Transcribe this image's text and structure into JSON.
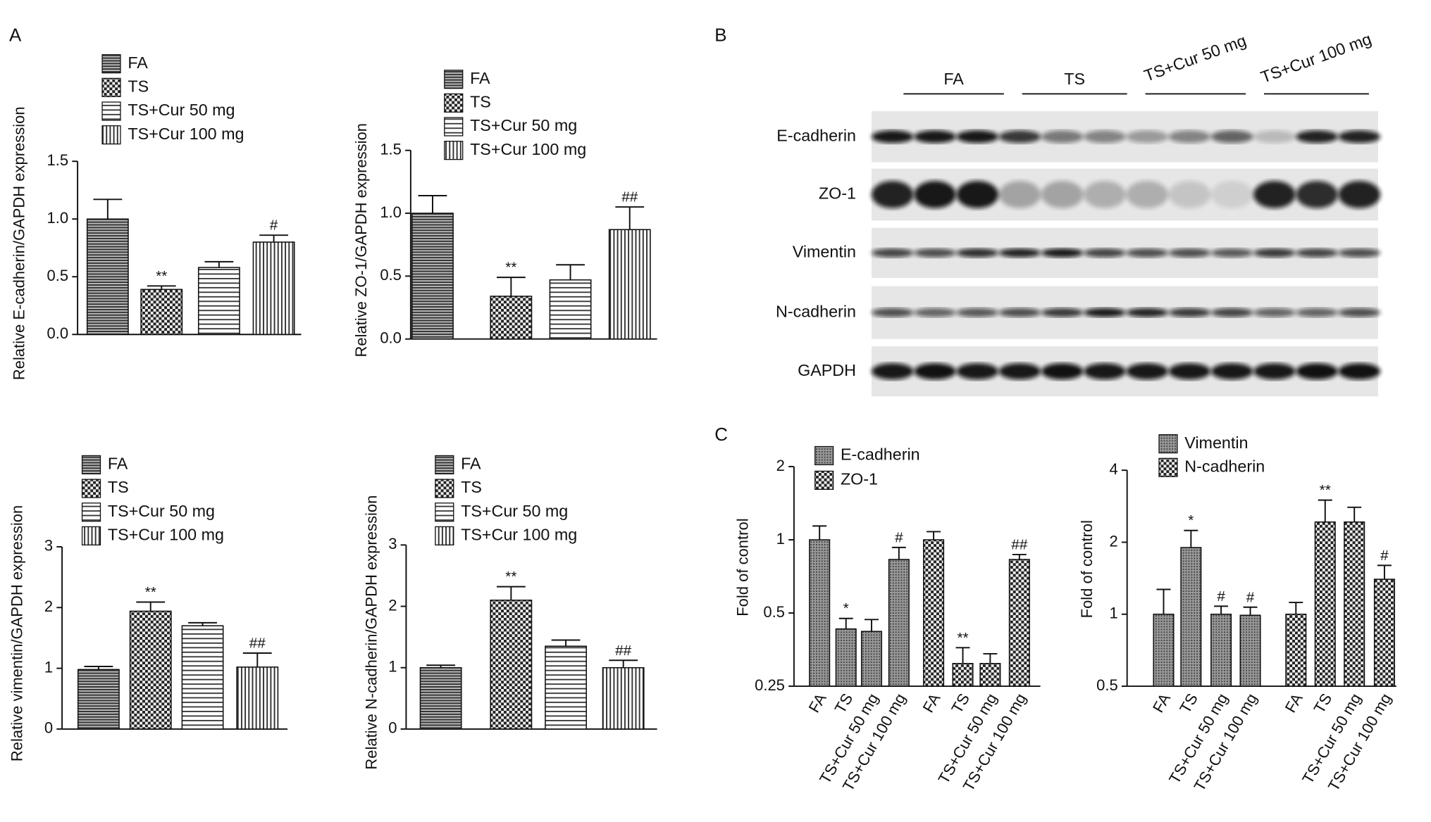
{
  "panel_labels": [
    "A",
    "B",
    "C"
  ],
  "blot": {
    "groups": [
      "FA",
      "TS",
      "TS+Cur 50 mg",
      "TS+Cur 100 mg"
    ],
    "proteins": [
      "E-cadherin",
      "ZO-1",
      "Vimentin",
      "N-cadherin",
      "GAPDH"
    ]
  },
  "chart_data": [
    {
      "type": "bar",
      "ylabel": "Relative E-cadherin/GAPDH expression",
      "ylim": [
        0,
        1.5
      ],
      "yticks": [
        {
          "value": 0,
          "label": "0.0"
        },
        0.5,
        {
          "value": 1,
          "label": "1.0"
        },
        1.5
      ],
      "series": [
        {
          "name": "FA",
          "pattern": "hlines",
          "values": [
            1.0
          ],
          "errors": [
            0.17
          ]
        },
        {
          "name": "TS",
          "pattern": "checker",
          "values": [
            0.39
          ],
          "errors": [
            0.03
          ],
          "annotations": [
            "**"
          ]
        },
        {
          "name": "TS+Cur 50 mg",
          "pattern": "hlines-light",
          "values": [
            0.58
          ],
          "errors": [
            0.05
          ]
        },
        {
          "name": "TS+Cur 100 mg",
          "pattern": "vlines",
          "values": [
            0.8
          ],
          "errors": [
            0.06
          ],
          "annotations": [
            "#"
          ]
        }
      ]
    },
    {
      "type": "bar",
      "ylabel": "Relative ZO-1/GAPDH expression",
      "ylim": [
        0,
        1.5
      ],
      "yticks": [
        {
          "value": 0,
          "label": "0.0"
        },
        0.5,
        {
          "value": 1,
          "label": "1.0"
        },
        1.5
      ],
      "series": [
        {
          "name": "FA",
          "pattern": "hlines",
          "values": [
            1.0
          ],
          "errors": [
            0.14
          ]
        },
        {
          "name": "TS",
          "pattern": "checker",
          "values": [
            0.34
          ],
          "errors": [
            0.15
          ],
          "annotations": [
            "**"
          ]
        },
        {
          "name": "TS+Cur 50 mg",
          "pattern": "hlines-light",
          "values": [
            0.47
          ],
          "errors": [
            0.12
          ]
        },
        {
          "name": "TS+Cur 100 mg",
          "pattern": "vlines",
          "values": [
            0.87
          ],
          "errors": [
            0.18
          ],
          "annotations": [
            "##"
          ]
        }
      ]
    },
    {
      "type": "bar",
      "ylabel": "Relative vimentin/GAPDH expression",
      "ylim": [
        0,
        3
      ],
      "yticks": [
        0,
        1,
        2,
        3
      ],
      "series": [
        {
          "name": "FA",
          "pattern": "hlines",
          "values": [
            0.98
          ],
          "errors": [
            0.05
          ]
        },
        {
          "name": "TS",
          "pattern": "checker",
          "values": [
            1.94
          ],
          "errors": [
            0.15
          ],
          "annotations": [
            "**"
          ]
        },
        {
          "name": "TS+Cur 50 mg",
          "pattern": "hlines-light",
          "values": [
            1.7
          ],
          "errors": [
            0.05
          ]
        },
        {
          "name": "TS+Cur 100 mg",
          "pattern": "vlines",
          "values": [
            1.02
          ],
          "errors": [
            0.23
          ],
          "annotations": [
            "##"
          ]
        }
      ]
    },
    {
      "type": "bar",
      "ylabel": "Relative N-cadherin/GAPDH expression",
      "ylim": [
        0,
        3
      ],
      "yticks": [
        0,
        1,
        2,
        3
      ],
      "series": [
        {
          "name": "FA",
          "pattern": "hlines",
          "values": [
            1.0
          ],
          "errors": [
            0.04
          ]
        },
        {
          "name": "TS",
          "pattern": "checker",
          "values": [
            2.1
          ],
          "errors": [
            0.22
          ],
          "annotations": [
            "**"
          ]
        },
        {
          "name": "TS+Cur 50 mg",
          "pattern": "hlines-light",
          "values": [
            1.35
          ],
          "errors": [
            0.1
          ]
        },
        {
          "name": "TS+Cur 100 mg",
          "pattern": "vlines",
          "values": [
            1.0
          ],
          "errors": [
            0.12
          ],
          "annotations": [
            "##"
          ]
        }
      ]
    },
    {
      "type": "grouped_bar",
      "ylabel": "Fold of control",
      "log_scale": true,
      "ylim": [
        0.25,
        2
      ],
      "yticks": [
        0.25,
        0.5,
        1,
        2
      ],
      "categories": [
        "FA",
        "TS",
        "TS+Cur 50 mg",
        "TS+Cur 100 mg"
      ],
      "series": [
        {
          "name": "E-cadherin",
          "pattern": "dense",
          "values": [
            1.0,
            0.43,
            0.42,
            0.83
          ],
          "errors": [
            0.14,
            0.045,
            0.05,
            0.1
          ],
          "annotations": [
            null,
            "*",
            null,
            "#"
          ]
        },
        {
          "name": "ZO-1",
          "pattern": "checker",
          "values": [
            1.0,
            0.31,
            0.31,
            0.83
          ],
          "errors": [
            0.08,
            0.05,
            0.03,
            0.04
          ],
          "annotations": [
            null,
            "**",
            null,
            "##"
          ]
        }
      ]
    },
    {
      "type": "grouped_bar",
      "ylabel": "Fold of control",
      "log_scale": true,
      "ylim": [
        0.5,
        4
      ],
      "yticks": [
        0.5,
        1,
        2,
        4
      ],
      "categories": [
        "FA",
        "TS",
        "TS+Cur 50 mg",
        "TS+Cur 100 mg"
      ],
      "series": [
        {
          "name": "Vimentin",
          "pattern": "dense",
          "values": [
            1.0,
            1.9,
            1.0,
            0.99
          ],
          "errors": [
            0.27,
            0.34,
            0.08,
            0.08
          ],
          "annotations": [
            null,
            "*",
            "#",
            "#"
          ]
        },
        {
          "name": "N-cadherin",
          "pattern": "checker",
          "values": [
            1.0,
            2.43,
            2.43,
            1.4
          ],
          "errors": [
            0.12,
            0.57,
            0.37,
            0.2
          ],
          "annotations": [
            null,
            "**",
            null,
            "#"
          ]
        }
      ]
    }
  ]
}
